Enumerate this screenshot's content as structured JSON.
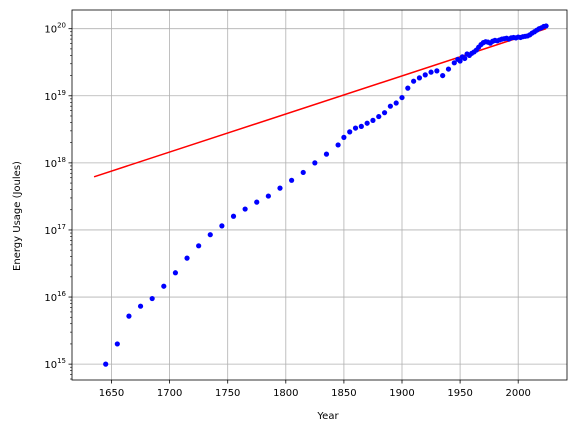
{
  "chart_data": {
    "type": "scatter",
    "xlabel": "Year",
    "ylabel": "Energy Usage (Joules)",
    "xlim": [
      1616,
      2042
    ],
    "ylim": [
      580000000000000.0,
      1.9e+20
    ],
    "yscale": "log",
    "grid": true,
    "xticks": [
      1650,
      1700,
      1750,
      1800,
      1850,
      1900,
      1950,
      2000
    ],
    "yticks": [
      {
        "exp": 15,
        "base": "10",
        "sup": "15"
      },
      {
        "exp": 16,
        "base": "10",
        "sup": "16"
      },
      {
        "exp": 17,
        "base": "10",
        "sup": "17"
      },
      {
        "exp": 18,
        "base": "10",
        "sup": "18"
      },
      {
        "exp": 19,
        "base": "10",
        "sup": "19"
      },
      {
        "exp": 20,
        "base": "10",
        "sup": "20"
      }
    ],
    "colors": {
      "points": "#0000ff",
      "fit": "#ff0000",
      "grid": "#b0b0b0"
    },
    "series": [
      {
        "kind": "scatter",
        "color": "#0000ff",
        "points": [
          [
            1645,
            1000000000000000.0
          ],
          [
            1655,
            2000000000000000.0
          ],
          [
            1665,
            5200000000000000.0
          ],
          [
            1675,
            7300000000000000.0
          ],
          [
            1685,
            9500000000000000.0
          ],
          [
            1695,
            1.45e+16
          ],
          [
            1705,
            2.3e+16
          ],
          [
            1715,
            3.8e+16
          ],
          [
            1725,
            5.8e+16
          ],
          [
            1735,
            8.5e+16
          ],
          [
            1745,
            1.15e+17
          ],
          [
            1755,
            1.6e+17
          ],
          [
            1765,
            2.05e+17
          ],
          [
            1775,
            2.6e+17
          ],
          [
            1785,
            3.2e+17
          ],
          [
            1795,
            4.2e+17
          ],
          [
            1805,
            5.5e+17
          ],
          [
            1815,
            7.2e+17
          ],
          [
            1825,
            1e+18
          ],
          [
            1835,
            1.35e+18
          ],
          [
            1845,
            1.85e+18
          ],
          [
            1850,
            2.4e+18
          ],
          [
            1855,
            2.9e+18
          ],
          [
            1860,
            3.3e+18
          ],
          [
            1865,
            3.5e+18
          ],
          [
            1870,
            3.9e+18
          ],
          [
            1875,
            4.3e+18
          ],
          [
            1880,
            4.9e+18
          ],
          [
            1885,
            5.6e+18
          ],
          [
            1890,
            7e+18
          ],
          [
            1895,
            7.8e+18
          ],
          [
            1900,
            9.4e+18
          ],
          [
            1905,
            1.3e+19
          ],
          [
            1910,
            1.65e+19
          ],
          [
            1915,
            1.85e+19
          ],
          [
            1920,
            2.05e+19
          ],
          [
            1925,
            2.25e+19
          ],
          [
            1930,
            2.35e+19
          ],
          [
            1935,
            2e+19
          ],
          [
            1940,
            2.5e+19
          ],
          [
            1945,
            3.1e+19
          ],
          [
            1948,
            3.5e+19
          ],
          [
            1950,
            3.3e+19
          ],
          [
            1952,
            3.8e+19
          ],
          [
            1954,
            3.6e+19
          ],
          [
            1956,
            4.2e+19
          ],
          [
            1958,
            4e+19
          ],
          [
            1960,
            4.3e+19
          ],
          [
            1962,
            4.5e+19
          ],
          [
            1964,
            4.8e+19
          ],
          [
            1966,
            5.3e+19
          ],
          [
            1968,
            5.8e+19
          ],
          [
            1970,
            6.2e+19
          ],
          [
            1972,
            6.4e+19
          ],
          [
            1974,
            6.3e+19
          ],
          [
            1976,
            6.1e+19
          ],
          [
            1978,
            6.5e+19
          ],
          [
            1980,
            6.7e+19
          ],
          [
            1982,
            6.6e+19
          ],
          [
            1984,
            6.8e+19
          ],
          [
            1986,
            7e+19
          ],
          [
            1988,
            7.1e+19
          ],
          [
            1990,
            7.2e+19
          ],
          [
            1992,
            7e+19
          ],
          [
            1994,
            7.3e+19
          ],
          [
            1996,
            7.4e+19
          ],
          [
            1998,
            7.3e+19
          ],
          [
            2000,
            7.5e+19
          ],
          [
            2002,
            7.4e+19
          ],
          [
            2004,
            7.6e+19
          ],
          [
            2006,
            7.7e+19
          ],
          [
            2008,
            7.8e+19
          ],
          [
            2010,
            8.1e+19
          ],
          [
            2012,
            8.6e+19
          ],
          [
            2014,
            9e+19
          ],
          [
            2016,
            9.5e+19
          ],
          [
            2018,
            1e+20
          ],
          [
            2020,
            1.03e+20
          ],
          [
            2022,
            1.08e+20
          ],
          [
            2024,
            1.1e+20
          ]
        ]
      },
      {
        "kind": "line",
        "color": "#ff0000",
        "points": [
          [
            1635,
            6.2e+17
          ],
          [
            2024,
            1e+20
          ]
        ]
      }
    ]
  }
}
